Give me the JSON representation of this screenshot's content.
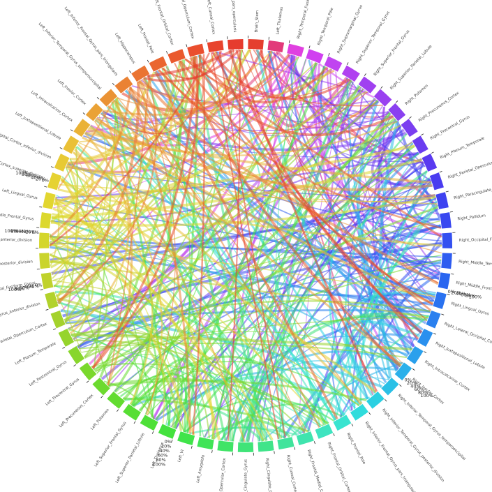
{
  "sectors": [
    {
      "label": "Brain_Stem",
      "color": "#e53e2e"
    },
    {
      "label": "Left_Thalamus",
      "color": "#e23a7a"
    },
    {
      "label": "Right_Temporal_Fusiform_Cortex_posterior_division",
      "color": "#e040e0"
    },
    {
      "label": "Right_Temporal_Pole",
      "color": "#d040f0"
    },
    {
      "label": "Right_Supramarginal_Gyrus",
      "color": "#c044f0"
    },
    {
      "label": "Right_Superior_Temporal_Gyrus",
      "color": "#b040f0"
    },
    {
      "label": "Right_Superior_Frontal_Gyrus",
      "color": "#a040f0"
    },
    {
      "label": "Right_Superior_Parietal_Lobule",
      "color": "#9a40f0"
    },
    {
      "label": "Right_Putamen",
      "color": "#8a40f0"
    },
    {
      "label": "Right_Precuneous_Cortex",
      "color": "#7a3ef0"
    },
    {
      "label": "Right_Precentral_Gyrus",
      "color": "#6a3cf0"
    },
    {
      "label": "Right_Planum_Temporale",
      "color": "#5a3af0"
    },
    {
      "label": "Right_Parietal_Operculum_Cortex",
      "color": "#4a3cf0"
    },
    {
      "label": "Right_Paracingulate_Gyrus",
      "color": "#3e42f0"
    },
    {
      "label": "Right_Pallidum",
      "color": "#3a48f0"
    },
    {
      "label": "Right_Occipital_Fusiform_Gyrus",
      "color": "#3450f0"
    },
    {
      "label": "Right_Middle_Temporal_Gyrus",
      "color": "#2e5cf0"
    },
    {
      "label": "Right_Middle_Frontal_Gyrus",
      "color": "#2a66f0"
    },
    {
      "label": "Right_Lingual_Gyrus",
      "color": "#2a72f0"
    },
    {
      "label": "Right_Lateral_Occipital_Cortex",
      "color": "#2a80ef"
    },
    {
      "label": "Right_Juxtapositional_Lobule",
      "color": "#2a90ee"
    },
    {
      "label": "Right_Intracalcarine_Cortex",
      "color": "#2aa0ec"
    },
    {
      "label": "Right_Insular_Cortex",
      "color": "#2ab0ea"
    },
    {
      "label": "Right_Inferior_Temporal_Gyrus_temporooccipital",
      "color": "#2ac0e6"
    },
    {
      "label": "Right_Inferior_Temporal_Gyrus_posterior_division",
      "color": "#2ad0e2"
    },
    {
      "label": "Right_Inferior_Frontal_Gyrus_pars_triangularis",
      "color": "#30dcdc"
    },
    {
      "label": "Right_Frontal_Pole",
      "color": "#38e4d0"
    },
    {
      "label": "Right_Frontal_Orbital_Cortex",
      "color": "#3ee4c0"
    },
    {
      "label": "Right_Frontal_Medial_Cortex",
      "color": "#40e4ae"
    },
    {
      "label": "Right_Cuneal_Cortex",
      "color": "#40e49c"
    },
    {
      "label": "Right_Cingulate_Gyrus",
      "color": "#40e48a"
    },
    {
      "label": "Left_Cingulate_Gyrus",
      "color": "#40e478"
    },
    {
      "label": "Left_Central_Opercular_Cortex",
      "color": "#40e466"
    },
    {
      "label": "Left_Amygdala",
      "color": "#40e456"
    },
    {
      "label": "Left_VI",
      "color": "#40e44a"
    },
    {
      "label": "Left_Thalamus",
      "color": "#44e23e"
    },
    {
      "label": "Left_Superior_Parietal_Lobule",
      "color": "#4ee038"
    },
    {
      "label": "Left_Superior_Frontal_Gyrus",
      "color": "#58de34"
    },
    {
      "label": "Left_Putamen",
      "color": "#62dc30"
    },
    {
      "label": "Left_Precuneous_Cortex",
      "color": "#6cda2e"
    },
    {
      "label": "Left_Precentral_Gyrus",
      "color": "#7ad82c"
    },
    {
      "label": "Left_Postcentral_Gyrus",
      "color": "#88d62c"
    },
    {
      "label": "Left_Planum_Temporale",
      "color": "#96d42c"
    },
    {
      "label": "Left_Parietal_Operculum_Cortex",
      "color": "#a4d22c"
    },
    {
      "label": "Left_Parahippocampal_Gyrus_anterior_division",
      "color": "#b2d22c"
    },
    {
      "label": "Left_Occipital_Fusiform_Gyrus",
      "color": "#c0d22c"
    },
    {
      "label": "Left_Middle_Temporal_Gyrus_posterior_division",
      "color": "#cad42c"
    },
    {
      "label": "Left_Middle_Temporal_Gyrus_anterior_division",
      "color": "#d4d62c"
    },
    {
      "label": "Left_Middle_Frontal_Gyrus",
      "color": "#dcd82e"
    },
    {
      "label": "Left_Lingual_Gyrus",
      "color": "#e2d630"
    },
    {
      "label": "Left_Lateral_Occipital_Cortex_superior_division",
      "color": "#e6d232"
    },
    {
      "label": "Left_Lateral_Occipital_Cortex_inferior_division",
      "color": "#e8ca34"
    },
    {
      "label": "Left_Juxtapositional_Lobule",
      "color": "#eac036"
    },
    {
      "label": "Left_Intracalcarine_Cortex",
      "color": "#eab236"
    },
    {
      "label": "Left_Insular_Cortex",
      "color": "#eaa236"
    },
    {
      "label": "Left_Inferior_Temporal_Gyrus_temporooccipital",
      "color": "#ea9234"
    },
    {
      "label": "Left_Inferior_Frontal_Gyrus_pars_triangularis",
      "color": "#ea8234"
    },
    {
      "label": "Left_Hippocampus",
      "color": "#ea7432"
    },
    {
      "label": "Left_Frontal_Pole",
      "color": "#ea6630"
    },
    {
      "label": "Left_Frontal_Orbital_Cortex",
      "color": "#ea5a2e"
    },
    {
      "label": "Left_Frontal_Operculum_Cortex",
      "color": "#ea4e2e"
    },
    {
      "label": "Left_Cuneal_Cortex",
      "color": "#e8442e"
    },
    {
      "label": "Left_Inferior_Frontal_Gyrus_pars_opercularis",
      "color": "#e63c2e"
    }
  ],
  "percent_ticks": [
    "0%",
    "20%",
    "40%",
    "60%",
    "80%",
    "100%"
  ],
  "count_ticks": [
    "0",
    "10",
    "20"
  ]
}
